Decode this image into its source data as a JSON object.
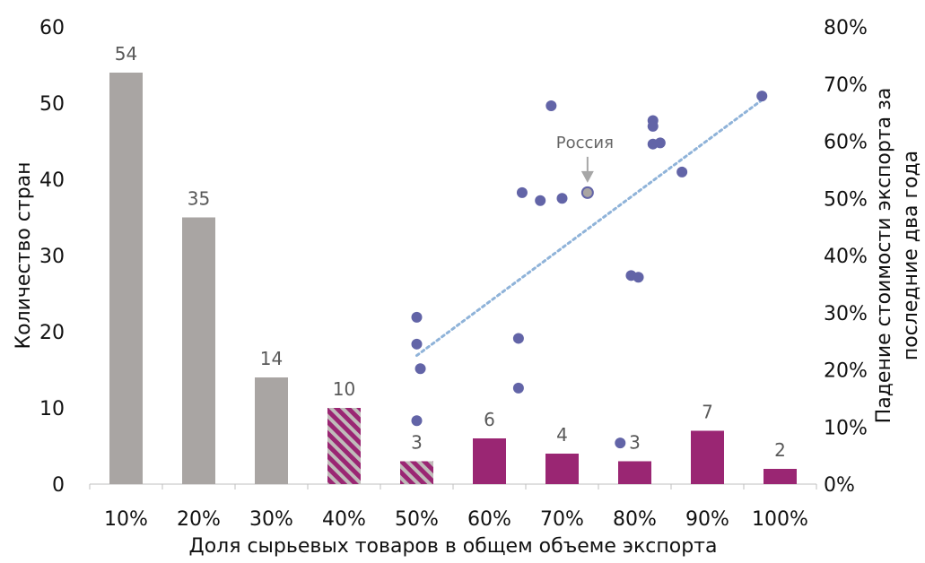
{
  "chart_data": {
    "type": "bar",
    "title": "",
    "xlabel": "Доля сырьевых товаров в общем объеме экспорта",
    "ylabel": "Количество стран",
    "y2label": [
      "Падение стоимости экспорта за",
      "последние два года"
    ],
    "categories": [
      "10%",
      "20%",
      "30%",
      "40%",
      "50%",
      "60%",
      "70%",
      "80%",
      "90%",
      "100%"
    ],
    "values": [
      54,
      35,
      14,
      10,
      3,
      6,
      4,
      3,
      7,
      2
    ],
    "bar_styles": [
      "solid-gray",
      "solid-gray",
      "solid-gray",
      "hatched",
      "hatched",
      "solid-purple",
      "solid-purple",
      "solid-purple",
      "solid-purple",
      "solid-purple"
    ],
    "ylim": [
      0,
      60
    ],
    "yticks": [
      0,
      10,
      20,
      30,
      40,
      50,
      60
    ],
    "y2lim": [
      0,
      0.8
    ],
    "y2ticks": [
      "0%",
      "10%",
      "20%",
      "30%",
      "40%",
      "50%",
      "60%",
      "70%",
      "80%"
    ],
    "scatter": {
      "type": "scatter",
      "axis": "secondary",
      "points": [
        {
          "x": 50,
          "y": 0.292
        },
        {
          "x": 50,
          "y": 0.245
        },
        {
          "x": 50.5,
          "y": 0.202
        },
        {
          "x": 50,
          "y": 0.111
        },
        {
          "x": 64.5,
          "y": 0.51
        },
        {
          "x": 64,
          "y": 0.255
        },
        {
          "x": 64,
          "y": 0.168
        },
        {
          "x": 68.5,
          "y": 0.662
        },
        {
          "x": 67,
          "y": 0.496
        },
        {
          "x": 70,
          "y": 0.5
        },
        {
          "x": 73.5,
          "y": 0.51,
          "highlight": true
        },
        {
          "x": 79.5,
          "y": 0.365
        },
        {
          "x": 80.5,
          "y": 0.362
        },
        {
          "x": 78,
          "y": 0.072
        },
        {
          "x": 82.5,
          "y": 0.636
        },
        {
          "x": 82.5,
          "y": 0.626
        },
        {
          "x": 82.5,
          "y": 0.595
        },
        {
          "x": 83.5,
          "y": 0.597
        },
        {
          "x": 86.5,
          "y": 0.546
        },
        {
          "x": 97.5,
          "y": 0.679
        }
      ]
    },
    "trendline": {
      "style": "dotted",
      "x": [
        50,
        97.5
      ],
      "y": [
        0.225,
        0.672
      ]
    },
    "annotation": {
      "text": "Россия",
      "x": 73.5,
      "y": 0.51
    },
    "colors": {
      "gray_bar": "#a9a5a3",
      "purple_bar": "#9a2673",
      "hatch_light": "#c0bcba",
      "dots": "#6264a7",
      "trendline": "#8fb3d9",
      "highlight_dot_fill": "#a9a5a3",
      "highlight_dot_ring": "#6264a7",
      "annotation_arrow": "#a6a6a6"
    },
    "grid": false,
    "legend": "none"
  }
}
